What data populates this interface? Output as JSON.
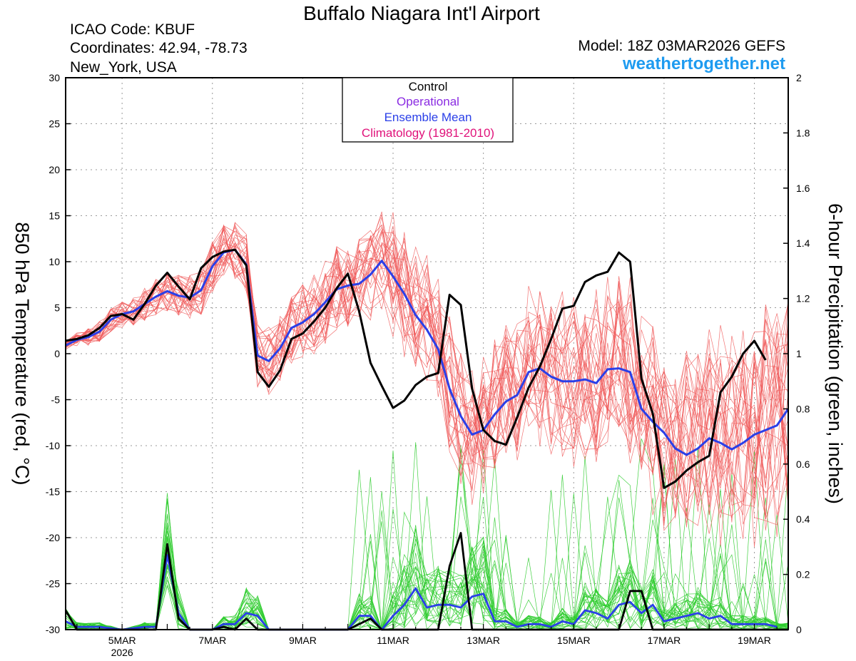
{
  "header": {
    "title": "Buffalo Niagara Int'l Airport",
    "icao": "ICAO Code: KBUF",
    "coords": "Coordinates: 42.94, -78.73",
    "location": "New_York, USA",
    "model": "Model: 18Z 03MAR2026 GEFS",
    "site": "weathertogether.net"
  },
  "colors": {
    "control": "#000000",
    "operational": "#8a2be2",
    "mean": "#2a3fe8",
    "climatology": "#e0127a",
    "members_temp": "#f05a5a",
    "members_precip": "#2ecc2e",
    "site": "#1e9bf0"
  },
  "chart_data": {
    "type": "line",
    "title": "Buffalo Niagara Int'l Airport",
    "ylabel": "850 hPa Temperature (red, °C)",
    "y2label": "6-hour Precipitation (green, inches)",
    "ylim": [
      -30,
      30
    ],
    "y2lim": [
      0,
      2
    ],
    "xlim_days": [
      3.75,
      19.75
    ],
    "x_ticks": [
      {
        "day": 5,
        "label": "5MAR",
        "sub": "2026"
      },
      {
        "day": 7,
        "label": "7MAR",
        "sub": ""
      },
      {
        "day": 9,
        "label": "9MAR",
        "sub": ""
      },
      {
        "day": 11,
        "label": "11MAR",
        "sub": ""
      },
      {
        "day": 13,
        "label": "13MAR",
        "sub": ""
      },
      {
        "day": 15,
        "label": "15MAR",
        "sub": ""
      },
      {
        "day": 17,
        "label": "17MAR",
        "sub": ""
      },
      {
        "day": 19,
        "label": "19MAR",
        "sub": ""
      }
    ],
    "y_ticks": [
      30,
      25,
      20,
      15,
      10,
      5,
      0,
      -5,
      -10,
      -15,
      -20,
      -25,
      -30
    ],
    "y2_ticks": [
      "2",
      "1.8",
      "1.6",
      "1.4",
      "1.2",
      "1",
      "0.8",
      "0.6",
      "0.4",
      "0.2",
      "0"
    ],
    "legend": [
      "Control",
      "Operational",
      "Ensemble Mean",
      "Climatology (1981-2010)"
    ],
    "grid": true,
    "control_temp": [
      [
        3.75,
        1.4
      ],
      [
        4.0,
        1.6
      ],
      [
        4.25,
        2.0
      ],
      [
        4.5,
        2.8
      ],
      [
        4.75,
        4.1
      ],
      [
        5.0,
        4.3
      ],
      [
        5.25,
        3.7
      ],
      [
        5.5,
        5.4
      ],
      [
        5.75,
        7.4
      ],
      [
        6.0,
        8.8
      ],
      [
        6.25,
        7.3
      ],
      [
        6.5,
        5.9
      ],
      [
        6.75,
        9.3
      ],
      [
        7.0,
        10.5
      ],
      [
        7.25,
        11.1
      ],
      [
        7.5,
        11.3
      ],
      [
        7.75,
        9.6
      ],
      [
        8.0,
        -2.0
      ],
      [
        8.25,
        -3.6
      ],
      [
        8.5,
        -1.8
      ],
      [
        8.75,
        1.6
      ],
      [
        9.0,
        2.2
      ],
      [
        9.25,
        3.5
      ],
      [
        9.5,
        5.0
      ],
      [
        9.75,
        7.1
      ],
      [
        10.0,
        8.7
      ],
      [
        10.25,
        4.6
      ],
      [
        10.5,
        -1.0
      ],
      [
        10.75,
        -3.5
      ],
      [
        11.0,
        -5.9
      ],
      [
        11.25,
        -5.1
      ],
      [
        11.5,
        -3.4
      ],
      [
        11.75,
        -2.5
      ],
      [
        12.0,
        -2.1
      ],
      [
        12.25,
        6.4
      ],
      [
        12.5,
        5.3
      ],
      [
        12.75,
        -3.8
      ],
      [
        13.0,
        -8.3
      ],
      [
        13.25,
        -9.5
      ],
      [
        13.5,
        -9.9
      ],
      [
        13.75,
        -6.9
      ],
      [
        14.0,
        -3.7
      ],
      [
        14.25,
        -1.4
      ],
      [
        14.5,
        1.6
      ],
      [
        14.75,
        4.9
      ],
      [
        15.0,
        5.2
      ],
      [
        15.25,
        7.8
      ],
      [
        15.5,
        8.5
      ],
      [
        15.75,
        8.9
      ],
      [
        16.0,
        11.0
      ],
      [
        16.25,
        10.0
      ],
      [
        16.5,
        -2.7
      ],
      [
        16.75,
        -6.5
      ],
      [
        17.0,
        -14.6
      ],
      [
        17.25,
        -13.9
      ],
      [
        17.5,
        -12.7
      ],
      [
        17.75,
        -11.8
      ],
      [
        18.0,
        -11.1
      ],
      [
        18.25,
        -4.2
      ],
      [
        18.5,
        -2.5
      ],
      [
        18.75,
        0.0
      ],
      [
        19.0,
        1.4
      ],
      [
        19.25,
        -0.7
      ]
    ],
    "mean_temp": [
      [
        3.75,
        0.9
      ],
      [
        4.0,
        1.5
      ],
      [
        4.25,
        1.8
      ],
      [
        4.5,
        2.4
      ],
      [
        4.75,
        3.7
      ],
      [
        5.0,
        4.3
      ],
      [
        5.25,
        4.6
      ],
      [
        5.5,
        5.4
      ],
      [
        5.75,
        6.2
      ],
      [
        6.0,
        6.8
      ],
      [
        6.25,
        6.3
      ],
      [
        6.5,
        6.1
      ],
      [
        6.75,
        6.9
      ],
      [
        7.0,
        9.5
      ],
      [
        7.25,
        11.0
      ],
      [
        7.5,
        11.3
      ],
      [
        7.75,
        9.7
      ],
      [
        8.0,
        -0.2
      ],
      [
        8.25,
        -0.8
      ],
      [
        8.5,
        0.6
      ],
      [
        8.75,
        2.8
      ],
      [
        9.0,
        3.4
      ],
      [
        9.25,
        4.3
      ],
      [
        9.5,
        5.6
      ],
      [
        9.75,
        7.0
      ],
      [
        10.0,
        7.4
      ],
      [
        10.25,
        7.6
      ],
      [
        10.5,
        8.6
      ],
      [
        10.75,
        10.1
      ],
      [
        11.0,
        8.4
      ],
      [
        11.25,
        6.5
      ],
      [
        11.5,
        4.2
      ],
      [
        11.75,
        2.6
      ],
      [
        12.0,
        0.5
      ],
      [
        12.25,
        -3.8
      ],
      [
        12.5,
        -6.8
      ],
      [
        12.75,
        -8.8
      ],
      [
        13.0,
        -8.3
      ],
      [
        13.25,
        -6.6
      ],
      [
        13.5,
        -5.2
      ],
      [
        13.75,
        -4.5
      ],
      [
        14.0,
        -2.0
      ],
      [
        14.25,
        -1.6
      ],
      [
        14.5,
        -2.5
      ],
      [
        14.75,
        -3.0
      ],
      [
        15.0,
        -3.0
      ],
      [
        15.25,
        -2.8
      ],
      [
        15.5,
        -3.2
      ],
      [
        15.75,
        -1.7
      ],
      [
        16.0,
        -1.6
      ],
      [
        16.25,
        -2.0
      ],
      [
        16.5,
        -6.0
      ],
      [
        16.75,
        -7.4
      ],
      [
        17.0,
        -8.6
      ],
      [
        17.25,
        -10.3
      ],
      [
        17.5,
        -11.0
      ],
      [
        17.75,
        -10.3
      ],
      [
        18.0,
        -9.2
      ],
      [
        18.25,
        -9.7
      ],
      [
        18.5,
        -10.4
      ],
      [
        18.75,
        -9.7
      ],
      [
        19.0,
        -8.8
      ],
      [
        19.25,
        -8.3
      ],
      [
        19.5,
        -7.8
      ],
      [
        19.75,
        -6.0
      ]
    ],
    "control_precip": [
      [
        3.75,
        0.07
      ],
      [
        4.0,
        0.0
      ],
      [
        4.25,
        0.0
      ],
      [
        5.0,
        0.0
      ],
      [
        5.75,
        0.0
      ],
      [
        6.0,
        0.31
      ],
      [
        6.25,
        0.04
      ],
      [
        6.5,
        0.0
      ],
      [
        6.75,
        0.0
      ],
      [
        7.0,
        0.0
      ],
      [
        7.25,
        0.01
      ],
      [
        7.5,
        0.0
      ],
      [
        7.75,
        0.04
      ],
      [
        8.0,
        0.0
      ],
      [
        8.25,
        0.0
      ],
      [
        10.0,
        0.0
      ],
      [
        10.25,
        0.02
      ],
      [
        10.5,
        0.04
      ],
      [
        10.75,
        0.0
      ],
      [
        11.0,
        0.0
      ],
      [
        12.0,
        0.0
      ],
      [
        12.25,
        0.23
      ],
      [
        12.5,
        0.35
      ],
      [
        12.75,
        0.0
      ],
      [
        13.0,
        0.0
      ],
      [
        16.0,
        0.0
      ],
      [
        16.25,
        0.14
      ],
      [
        16.5,
        0.14
      ],
      [
        16.75,
        0.0
      ],
      [
        17.0,
        0.0
      ],
      [
        19.75,
        0.0
      ]
    ],
    "mean_precip": [
      [
        3.75,
        0.03
      ],
      [
        4.0,
        0.01
      ],
      [
        4.5,
        0.01
      ],
      [
        5.0,
        0.0
      ],
      [
        5.5,
        0.01
      ],
      [
        5.75,
        0.01
      ],
      [
        6.0,
        0.27
      ],
      [
        6.25,
        0.06
      ],
      [
        6.5,
        0.0
      ],
      [
        7.0,
        0.0
      ],
      [
        7.25,
        0.02
      ],
      [
        7.5,
        0.02
      ],
      [
        7.75,
        0.06
      ],
      [
        8.0,
        0.05
      ],
      [
        8.25,
        0.0
      ],
      [
        9.5,
        0.0
      ],
      [
        10.0,
        0.0
      ],
      [
        10.25,
        0.05
      ],
      [
        10.5,
        0.05
      ],
      [
        10.75,
        0.0
      ],
      [
        11.0,
        0.05
      ],
      [
        11.25,
        0.09
      ],
      [
        11.5,
        0.15
      ],
      [
        11.75,
        0.08
      ],
      [
        12.0,
        0.09
      ],
      [
        12.25,
        0.09
      ],
      [
        12.5,
        0.08
      ],
      [
        12.75,
        0.12
      ],
      [
        13.0,
        0.13
      ],
      [
        13.25,
        0.03
      ],
      [
        13.5,
        0.03
      ],
      [
        13.75,
        0.01
      ],
      [
        14.0,
        0.02
      ],
      [
        14.25,
        0.02
      ],
      [
        14.5,
        0.01
      ],
      [
        14.75,
        0.03
      ],
      [
        15.0,
        0.02
      ],
      [
        15.25,
        0.07
      ],
      [
        15.5,
        0.06
      ],
      [
        15.75,
        0.04
      ],
      [
        16.0,
        0.09
      ],
      [
        16.25,
        0.1
      ],
      [
        16.5,
        0.06
      ],
      [
        16.75,
        0.09
      ],
      [
        17.0,
        0.03
      ],
      [
        17.25,
        0.04
      ],
      [
        17.5,
        0.05
      ],
      [
        17.75,
        0.06
      ],
      [
        18.0,
        0.04
      ],
      [
        18.25,
        0.05
      ],
      [
        18.5,
        0.02
      ],
      [
        18.75,
        0.02
      ],
      [
        19.0,
        0.02
      ],
      [
        19.25,
        0.02
      ],
      [
        19.5,
        0.01
      ]
    ]
  }
}
